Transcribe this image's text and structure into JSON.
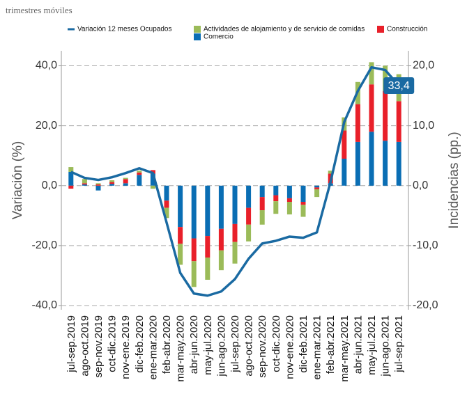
{
  "chart_data": {
    "type": "combo",
    "subtitle": "trimestres móviles",
    "y_label": "Variación (%)",
    "y2_label": "Incidencias (pp.)",
    "categories": [
      "jul-sep.2019",
      "ago-oct.2019",
      "sep-nov.2019",
      "oct-dic.2019",
      "nov-ene.2019",
      "dic-feb.2020",
      "ene-mar.2020",
      "feb-abr.2020",
      "mar-may.2020",
      "abr-jun.2020",
      "may-jul.2020",
      "jun-ago.2020",
      "jul-sep.2020",
      "ago-oct.2020",
      "sep-nov.2020",
      "oct-dic.2020",
      "nov-ene.2020",
      "dic-feb.2021",
      "ene-mar.2021",
      "feb-abr.2021",
      "mar-may.2021",
      "abr-jun.2021",
      "may-jul.2021",
      "jun-ago.2021",
      "jul-sep.2021"
    ],
    "series": [
      {
        "name": "Variación 12 meses Ocupados",
        "type": "line",
        "color": "#1a6aa2",
        "values": [
          4.6,
          2.6,
          1.9,
          2.8,
          4.2,
          5.8,
          4.2,
          -12.3,
          -29.1,
          -36.0,
          -36.7,
          -35.3,
          -31.2,
          -24.4,
          -19.3,
          -18.4,
          -17.0,
          -17.4,
          -15.6,
          1.2,
          21.2,
          31.6,
          39.5,
          38.6,
          33.4
        ],
        "value_labels": [
          null,
          null,
          null,
          null,
          null,
          null,
          null,
          null,
          null,
          null,
          null,
          null,
          null,
          null,
          null,
          null,
          null,
          null,
          null,
          null,
          null,
          null,
          null,
          null,
          "33,4"
        ]
      },
      {
        "name": "Actividades de alojamiento y de servicio de comidas",
        "type": "bar",
        "axis": "y2",
        "color": "#9bbb59",
        "values": [
          0.8,
          0.7,
          0.2,
          0.3,
          0.2,
          0.3,
          -0.5,
          -1.7,
          -3.5,
          -4.3,
          -3.7,
          -3.3,
          -3.6,
          -2.8,
          -2.4,
          -2.1,
          -2.1,
          -2.0,
          -1.3,
          0.5,
          2.2,
          3.7,
          3.7,
          4.2,
          4.5
        ]
      },
      {
        "name": "Construcción",
        "type": "bar",
        "axis": "y2",
        "color": "#e8202a",
        "values": [
          -0.5,
          0.2,
          0.2,
          0.3,
          0.7,
          0.4,
          0.6,
          -1.2,
          -2.8,
          -3.8,
          -3.6,
          -3.6,
          -3.0,
          -2.8,
          -2.2,
          -1.0,
          -0.6,
          -0.5,
          -0.3,
          1.6,
          4.7,
          6.3,
          7.9,
          8.3,
          6.8
        ]
      },
      {
        "name": "Comercio",
        "type": "bar",
        "axis": "y2",
        "color": "#0a6eb4",
        "values": [
          2.3,
          0.2,
          -0.8,
          0.3,
          0.4,
          1.8,
          2.0,
          -2.5,
          -6.9,
          -8.8,
          -8.4,
          -7.2,
          -6.4,
          -3.7,
          -1.9,
          -1.6,
          -2.1,
          -2.7,
          -0.3,
          0.4,
          4.5,
          7.3,
          9.0,
          7.5,
          7.3
        ]
      }
    ],
    "ylim": [
      -41.4,
      45
    ],
    "yticks": [
      {
        "value": -40,
        "label": "-40,0"
      },
      {
        "value": -20,
        "label": "-20,0"
      },
      {
        "value": 0,
        "label": "0,0"
      },
      {
        "value": 20,
        "label": "20,0"
      },
      {
        "value": 40,
        "label": "40,0"
      }
    ],
    "y2lim": [
      -20.7,
      22.5
    ],
    "y2ticks": [
      {
        "value": -20,
        "label": "-20,0"
      },
      {
        "value": -10,
        "label": "-10,0"
      },
      {
        "value": 0,
        "label": "0,0"
      },
      {
        "value": 10,
        "label": "10,0"
      },
      {
        "value": 20,
        "label": "20,0"
      }
    ],
    "grid": true
  }
}
